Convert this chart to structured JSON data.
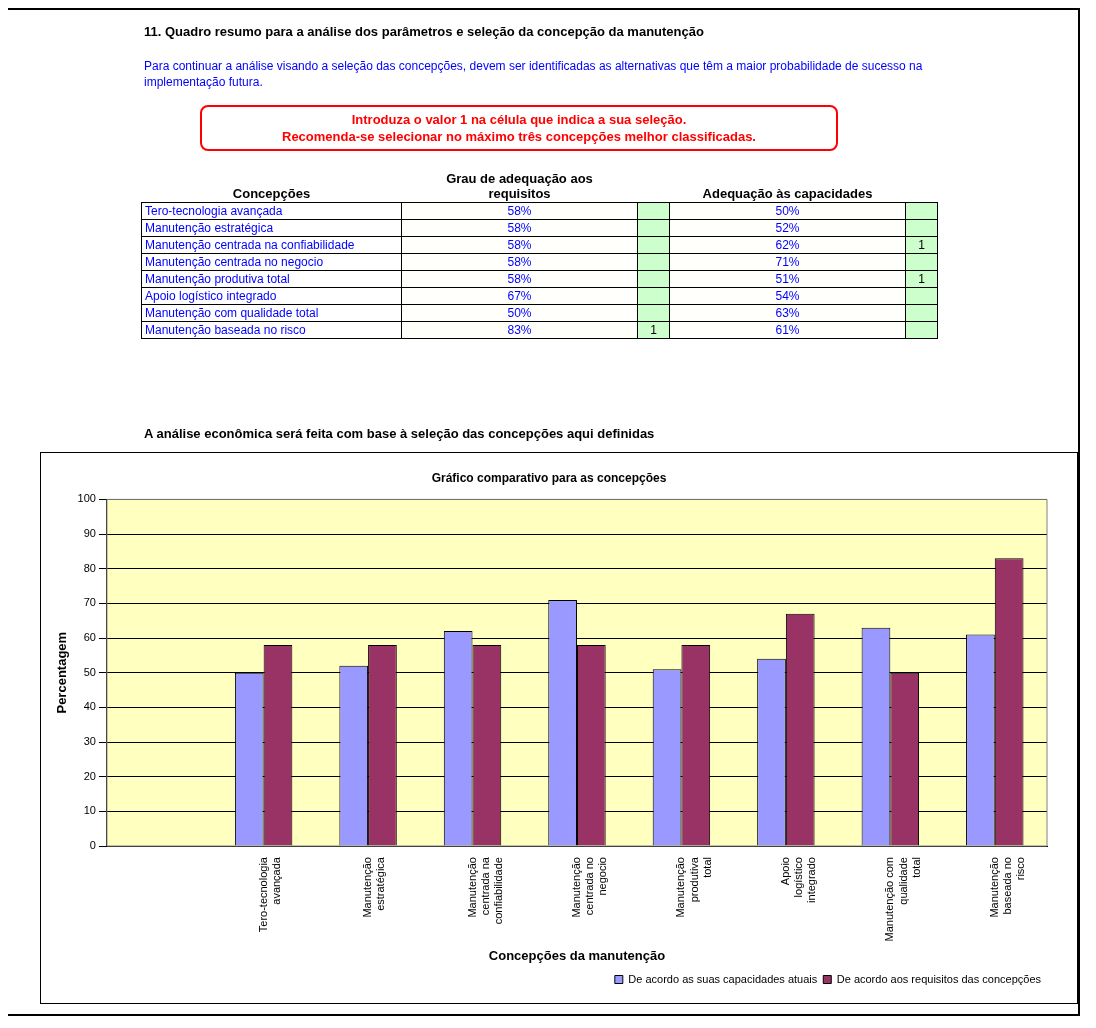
{
  "chart_data": [
    {
      "type": "heatmap",
      "title": "11. Quadro resumo para a análise dos parâmetros e seleção da concepção da manutenção",
      "subtitle": "Para continuar a análise visando a seleção das concepções, devem ser identificadas as alternativas que têm a maior probabilidade de sucesso na implementação futura.",
      "annotations": [
        "Introduza o valor 1 na célula que indica a sua seleção.",
        "Recomenda-se selecionar no máximo três concepções melhor classificadas."
      ],
      "ylabel": "Concepções",
      "categories": [
        "Grau de adequação aos requisitos",
        null,
        "Adequação às capacidades",
        null
      ],
      "y_categories": [
        "Tero-tecnologia avançada",
        "Manutenção estratégica",
        "Manutenção centrada na confiabilidade",
        "Manutenção centrada no negocio",
        "Manutenção produtiva total",
        "Apoio logístico integrado",
        "Manutenção com qualidade total",
        "Manutenção baseada no risco"
      ],
      "cells": [
        [
          58,
          null,
          50,
          null
        ],
        [
          58,
          null,
          52,
          null
        ],
        [
          58,
          null,
          62,
          1
        ],
        [
          58,
          null,
          71,
          null
        ],
        [
          58,
          null,
          51,
          1
        ],
        [
          67,
          null,
          54,
          null
        ],
        [
          50,
          null,
          63,
          null
        ],
        [
          83,
          1,
          61,
          null
        ]
      ],
      "cell_labels": [
        [
          "58%",
          null,
          "50%",
          null
        ],
        [
          "58%",
          null,
          "52%",
          null
        ],
        [
          "58%",
          null,
          "62%",
          "1"
        ],
        [
          "58%",
          null,
          "71%",
          null
        ],
        [
          "58%",
          null,
          "51%",
          "1"
        ],
        [
          "67%",
          null,
          "54%",
          null
        ],
        [
          "50%",
          null,
          "63%",
          null
        ],
        [
          "83%",
          "1",
          "61%",
          null
        ]
      ]
    },
    {
      "type": "bar",
      "title": "Gráfico comparativo para as concepções",
      "xlabel": "Concepções da manutenção",
      "ylabel": "Percentagem",
      "annotations": [
        "A análise econômica será feita com base à seleção das concepções aqui definidas"
      ],
      "categories": [
        null,
        "Tero-tecnologia avançada",
        "Manutenção estratégica",
        "Manutenção centrada na confiabilidade",
        "Manutenção centrada no negocio",
        "Manutenção produtiva total",
        "Apoio logístico integrado",
        "Manutenção com qualidade total",
        "Manutenção baseada no risco"
      ],
      "series": [
        {
          "name": "De acordo as suas capacidades atuais",
          "color": "#9999ff",
          "values": [
            null,
            50,
            52,
            62,
            71,
            51,
            54,
            63,
            61
          ]
        },
        {
          "name": "De acordo aos requisitos das concepções",
          "color": "#993366",
          "values": [
            null,
            58,
            58,
            58,
            58,
            58,
            67,
            50,
            83
          ]
        }
      ],
      "ylim": [
        0,
        100
      ],
      "yticks": [
        0,
        10,
        20,
        30,
        40,
        50,
        60,
        70,
        80,
        90,
        100
      ],
      "grid": "y",
      "legend": "bottom right"
    }
  ]
}
